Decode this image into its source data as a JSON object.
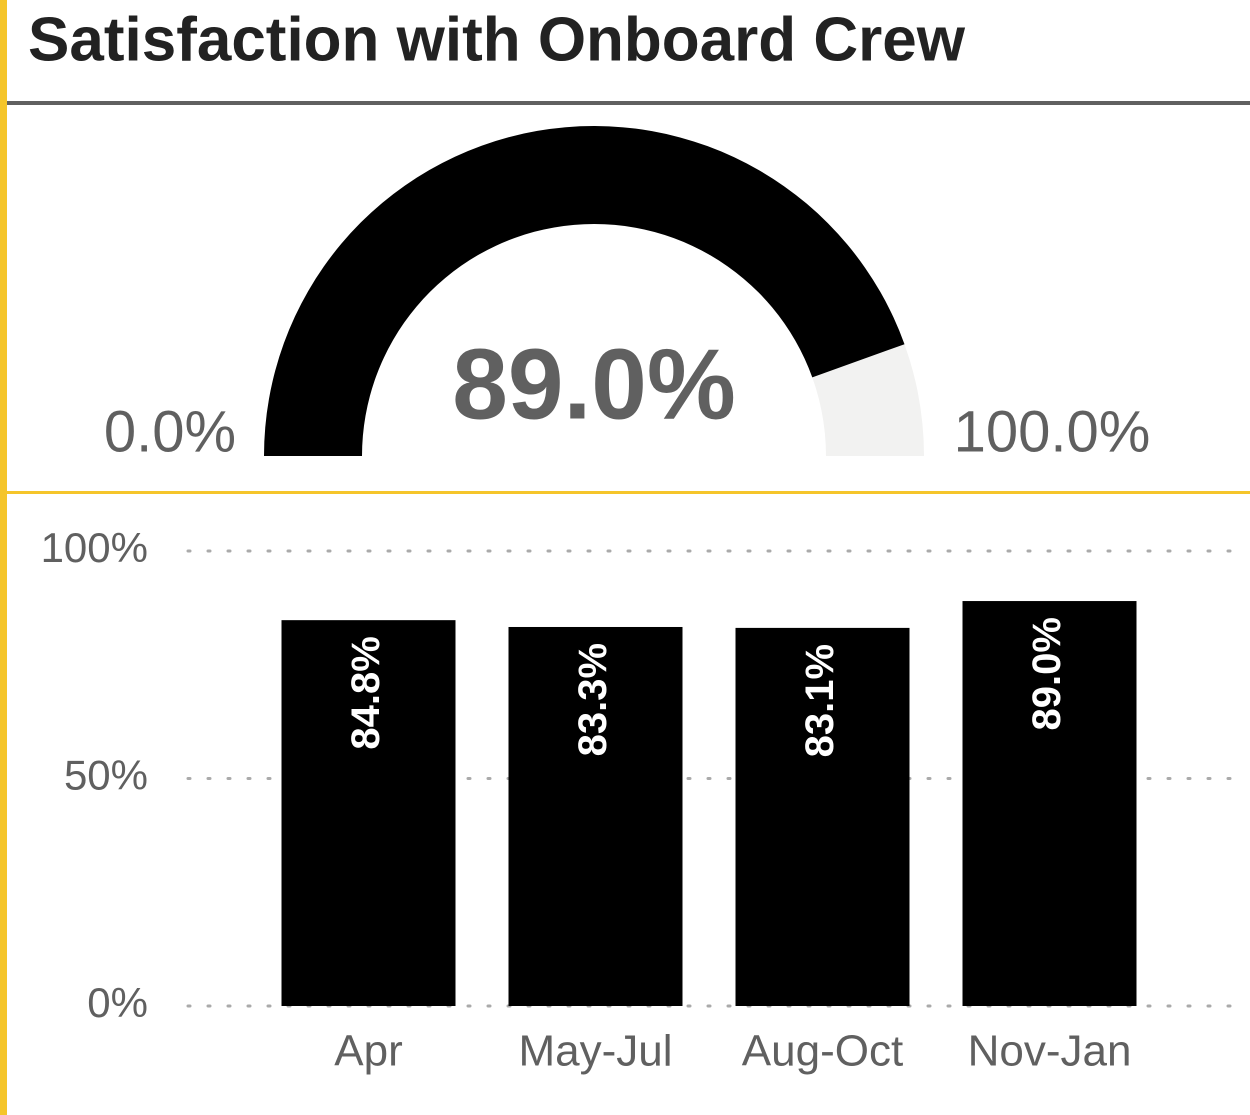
{
  "title": "Satisfaction with Onboard Crew",
  "chart_data": [
    {
      "type": "gauge",
      "values": [
        89.0
      ],
      "value_labels": [
        "89.0%"
      ],
      "color": "#000000",
      "track_color": "#f2f2f1",
      "ylim": [
        0,
        100
      ],
      "yticks": [
        {
          "value": 0,
          "label": "0.0%"
        },
        {
          "value": 100,
          "label": "100.0%"
        }
      ]
    },
    {
      "type": "bar",
      "categories": [
        "Apr",
        "May-Jul",
        "Aug-Oct",
        "Nov-Jan"
      ],
      "values": [
        84.8,
        83.3,
        83.1,
        89.0
      ],
      "value_labels": [
        "84.8%",
        "83.3%",
        "83.1%",
        "89.0%"
      ],
      "color": "#000000",
      "ylim": [
        0,
        100
      ],
      "yticks": [
        {
          "value": 0,
          "label": "0%"
        },
        {
          "value": 50,
          "label": "50%"
        },
        {
          "value": 100,
          "label": "100%"
        }
      ],
      "grid": true
    }
  ]
}
